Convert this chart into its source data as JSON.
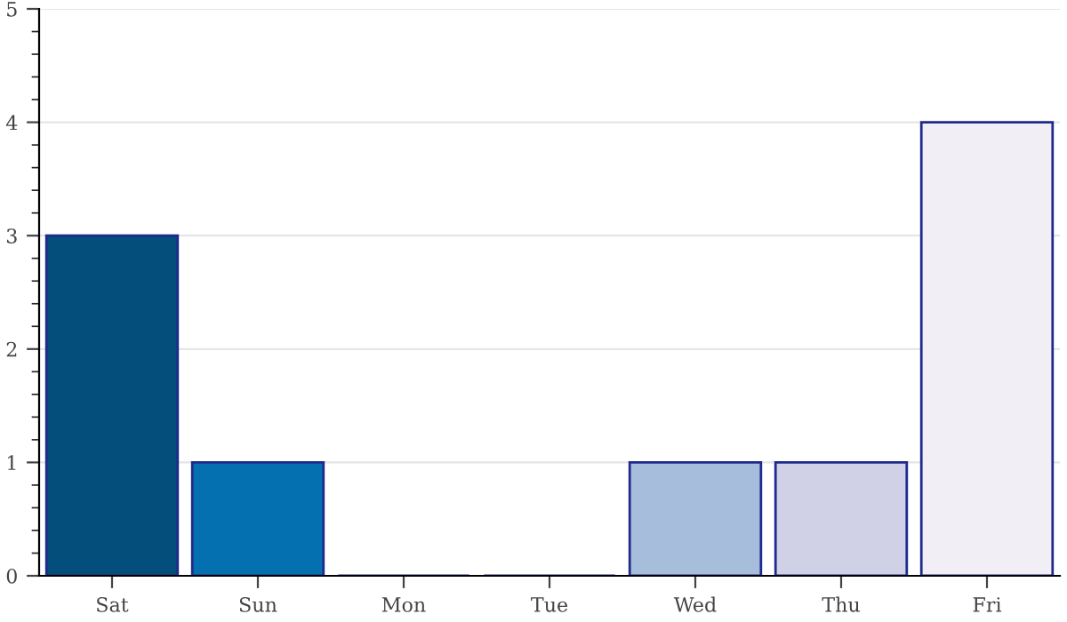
{
  "chart_data": {
    "type": "bar",
    "categories": [
      "Sat",
      "Sun",
      "Mon",
      "Tue",
      "Wed",
      "Thu",
      "Fri"
    ],
    "values": [
      3,
      1,
      0,
      0,
      1,
      1,
      4
    ],
    "colors": [
      "#034e7b",
      "#0570b0",
      "#3690c0",
      "#74a9cf",
      "#a6bddb",
      "#d0d1e6",
      "#f1eef6"
    ],
    "ylim": [
      0,
      5
    ],
    "yticks": [
      0,
      1,
      2,
      3,
      4,
      5
    ],
    "grid": "y"
  }
}
